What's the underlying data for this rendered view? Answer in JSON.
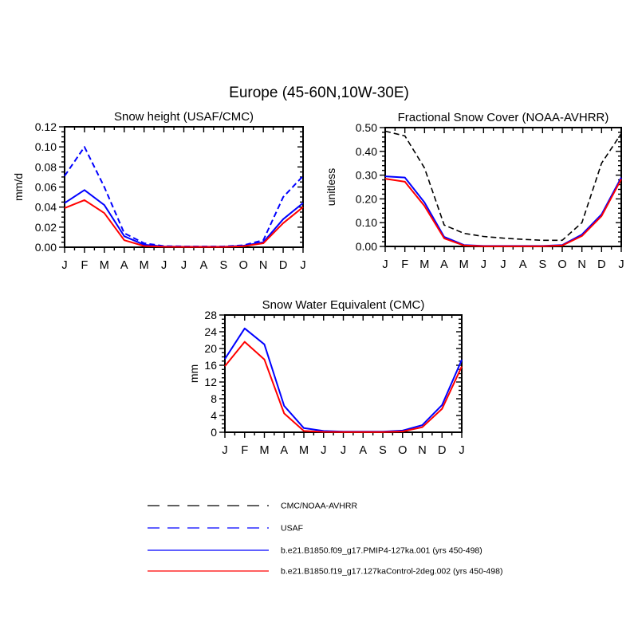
{
  "title": "Europe (45-60N,10W-30E)",
  "months": [
    "J",
    "F",
    "M",
    "A",
    "M",
    "J",
    "J",
    "A",
    "S",
    "O",
    "N",
    "D",
    "J"
  ],
  "colors": {
    "blue": "#0000ff",
    "red": "#ff0000",
    "black": "#000000"
  },
  "chart_data": [
    {
      "type": "line",
      "title": "Snow height (USAF/CMC)",
      "ylabel": "mm/d",
      "xlabel": "",
      "x": [
        "J",
        "F",
        "M",
        "A",
        "M",
        "J",
        "J",
        "A",
        "S",
        "O",
        "N",
        "D",
        "J"
      ],
      "ylim": [
        0,
        0.12
      ],
      "yticks": [
        0,
        0.02,
        0.04,
        0.06,
        0.08,
        0.1,
        0.12
      ],
      "ytick_labels": [
        "0.00",
        "0.02",
        "0.04",
        "0.06",
        "0.08",
        "0.10",
        "0.12"
      ],
      "yminor_divisions": 4,
      "grid": false,
      "series": [
        {
          "name": "USAF",
          "color": "#0000ff",
          "style": "dashed",
          "values": [
            0.071,
            0.1,
            0.06,
            0.014,
            0.004,
            0.0012,
            0.0008,
            0.0008,
            0.0008,
            0.002,
            0.007,
            0.05,
            0.071
          ]
        },
        {
          "name": "b.e21.B1850.f09_g17.PMIP4-127ka.001 (yrs 450-498)",
          "color": "#0000ff",
          "style": "solid",
          "values": [
            0.044,
            0.057,
            0.042,
            0.011,
            0.0025,
            0.0008,
            0.0005,
            0.0005,
            0.0005,
            0.0015,
            0.005,
            0.028,
            0.044
          ]
        },
        {
          "name": "b.e21.B1850.f19_g17.127kaControl-2deg.002 (yrs 450-498)",
          "color": "#ff0000",
          "style": "solid",
          "values": [
            0.039,
            0.047,
            0.034,
            0.007,
            0.0012,
            0.0005,
            0.0003,
            0.0003,
            0.0003,
            0.001,
            0.004,
            0.024,
            0.04
          ]
        }
      ]
    },
    {
      "type": "line",
      "title": "Fractional Snow Cover (NOAA-AVHRR)",
      "ylabel": "unitless",
      "xlabel": "",
      "x": [
        "J",
        "F",
        "M",
        "A",
        "M",
        "J",
        "J",
        "A",
        "S",
        "O",
        "N",
        "D",
        "J"
      ],
      "ylim": [
        0,
        0.5
      ],
      "yticks": [
        0,
        0.1,
        0.2,
        0.3,
        0.4,
        0.5
      ],
      "ytick_labels": [
        "0.00",
        "0.10",
        "0.20",
        "0.30",
        "0.40",
        "0.50"
      ],
      "yminor_divisions": 5,
      "grid": false,
      "series": [
        {
          "name": "CMC/NOAA-AVHRR",
          "color": "#000000",
          "style": "dashed",
          "values": [
            0.485,
            0.465,
            0.33,
            0.09,
            0.055,
            0.042,
            0.035,
            0.03,
            0.026,
            0.026,
            0.1,
            0.35,
            0.475
          ]
        },
        {
          "name": "b.e21.B1850.f09_g17.PMIP4-127ka.001 (yrs 450-498)",
          "color": "#0000ff",
          "style": "solid",
          "values": [
            0.295,
            0.29,
            0.185,
            0.04,
            0.006,
            0.002,
            0.002,
            0.002,
            0.002,
            0.006,
            0.05,
            0.135,
            0.29
          ]
        },
        {
          "name": "b.e21.B1850.f19_g17.127kaControl-2deg.002 (yrs 450-498)",
          "color": "#ff0000",
          "style": "solid",
          "values": [
            0.285,
            0.272,
            0.17,
            0.034,
            0.004,
            0.001,
            0.001,
            0.001,
            0.001,
            0.004,
            0.044,
            0.128,
            0.283
          ]
        }
      ]
    },
    {
      "type": "line",
      "title": "Snow Water Equivalent (CMC)",
      "ylabel": "mm",
      "xlabel": "",
      "x": [
        "J",
        "F",
        "M",
        "A",
        "M",
        "J",
        "J",
        "A",
        "S",
        "O",
        "N",
        "D",
        "J"
      ],
      "ylim": [
        0,
        28
      ],
      "yticks": [
        0,
        4,
        8,
        12,
        16,
        20,
        24,
        28
      ],
      "ytick_labels": [
        "0",
        "4",
        "8",
        "12",
        "16",
        "20",
        "24",
        "28"
      ],
      "yminor_divisions": 4,
      "grid": false,
      "series": [
        {
          "name": "b.e21.B1850.f09_g17.PMIP4-127ka.001 (yrs 450-498)",
          "color": "#0000ff",
          "style": "solid",
          "values": [
            17.5,
            24.8,
            21.0,
            6.3,
            1.0,
            0.3,
            0.15,
            0.15,
            0.15,
            0.4,
            1.7,
            6.5,
            17.3
          ]
        },
        {
          "name": "b.e21.B1850.f19_g17.127kaControl-2deg.002 (yrs 450-498)",
          "color": "#ff0000",
          "style": "solid",
          "values": [
            15.8,
            21.6,
            17.4,
            4.5,
            0.3,
            0.1,
            0.05,
            0.05,
            0.05,
            0.2,
            1.2,
            5.6,
            15.7
          ]
        }
      ]
    }
  ],
  "legend": {
    "position": "bottom-left",
    "items": [
      {
        "label": "CMC/NOAA-AVHRR",
        "color": "#000000",
        "style": "dashed"
      },
      {
        "label": "USAF",
        "color": "#0000ff",
        "style": "dashed"
      },
      {
        "label": "b.e21.B1850.f09_g17.PMIP4-127ka.001 (yrs 450-498)",
        "color": "#0000ff",
        "style": "solid"
      },
      {
        "label": "b.e21.B1850.f19_g17.127kaControl-2deg.002 (yrs 450-498)",
        "color": "#ff0000",
        "style": "solid"
      }
    ]
  }
}
